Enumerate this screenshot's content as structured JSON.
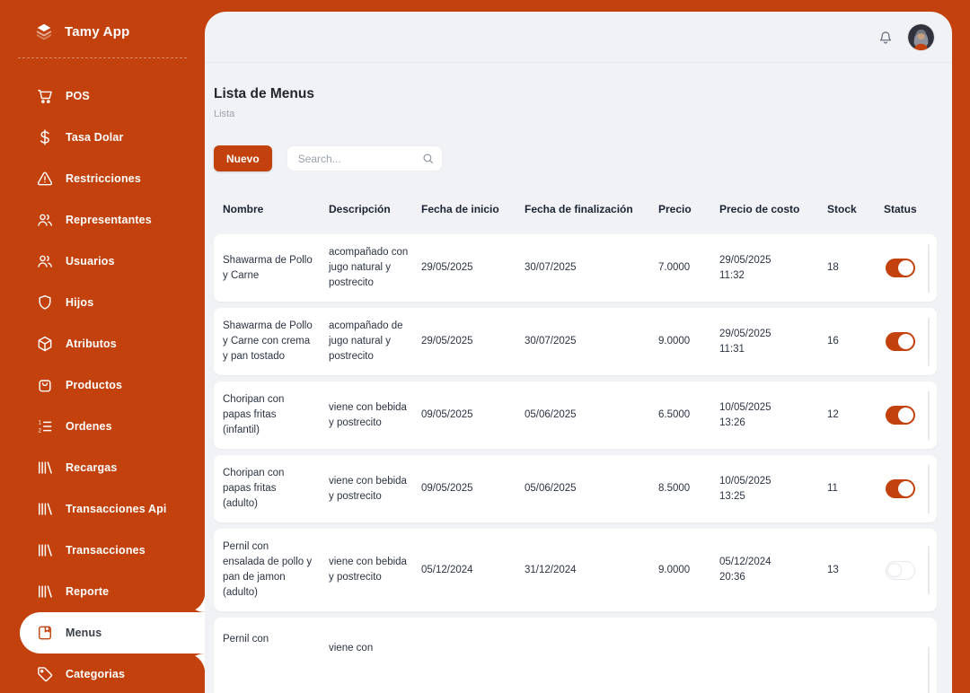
{
  "app": {
    "name": "Tamy App",
    "logo_icon": "layers-icon"
  },
  "sidebar": {
    "items": [
      {
        "label": "POS",
        "icon": "cart",
        "active": false
      },
      {
        "label": "Tasa Dolar",
        "icon": "dollar",
        "active": false
      },
      {
        "label": "Restricciones",
        "icon": "warning",
        "active": false
      },
      {
        "label": "Representantes",
        "icon": "users",
        "active": false
      },
      {
        "label": "Usuarios",
        "icon": "users",
        "active": false
      },
      {
        "label": "Hijos",
        "icon": "shield",
        "active": false
      },
      {
        "label": "Atributos",
        "icon": "cube",
        "active": false
      },
      {
        "label": "Productos",
        "icon": "bag",
        "active": false
      },
      {
        "label": "Ordenes",
        "icon": "list-numbered",
        "active": false
      },
      {
        "label": "Recargas",
        "icon": "bars",
        "active": false
      },
      {
        "label": "Transacciones Api",
        "icon": "bars",
        "active": false
      },
      {
        "label": "Transacciones",
        "icon": "bars",
        "active": false
      },
      {
        "label": "Reporte",
        "icon": "bars",
        "active": false
      },
      {
        "label": "Menus",
        "icon": "book",
        "active": true
      },
      {
        "label": "Categorias",
        "icon": "tag",
        "active": false
      }
    ]
  },
  "topbar": {
    "bell_icon": "bell-icon",
    "avatar_name": "user-avatar"
  },
  "page": {
    "title": "Lista de Menus",
    "subtitle": "Lista"
  },
  "toolbar": {
    "new_button": "Nuevo",
    "search_placeholder": "Search..."
  },
  "table": {
    "columns": [
      "Nombre",
      "Descripción",
      "Fecha de inicio",
      "Fecha de finalización",
      "Precio",
      "Precio de costo",
      "Stock",
      "Status"
    ],
    "rows": [
      {
        "nombre": "Shawarma de Pollo y Carne",
        "descripcion": "acompañado con jugo natural y postrecito",
        "fecha_inicio": "29/05/2025",
        "fecha_fin": "30/07/2025",
        "precio": "7.0000",
        "costo_fecha": "29/05/2025",
        "costo_hora": "11:32",
        "stock": "18",
        "status_on": true,
        "partial": false
      },
      {
        "nombre": "Shawarma de Pollo y Carne con crema y pan tostado",
        "descripcion": "acompañado de jugo natural y postrecito",
        "fecha_inicio": "29/05/2025",
        "fecha_fin": "30/07/2025",
        "precio": "9.0000",
        "costo_fecha": "29/05/2025",
        "costo_hora": "11:31",
        "stock": "16",
        "status_on": true,
        "partial": false
      },
      {
        "nombre": "Choripan con papas fritas (infantil)",
        "descripcion": "viene con bebida y postrecito",
        "fecha_inicio": "09/05/2025",
        "fecha_fin": "05/06/2025",
        "precio": "6.5000",
        "costo_fecha": "10/05/2025",
        "costo_hora": "13:26",
        "stock": "12",
        "status_on": true,
        "partial": false
      },
      {
        "nombre": "Choripan con papas fritas (adulto)",
        "descripcion": "viene con bebida y postrecito",
        "fecha_inicio": "09/05/2025",
        "fecha_fin": "05/06/2025",
        "precio": "8.5000",
        "costo_fecha": "10/05/2025",
        "costo_hora": "13:25",
        "stock": "11",
        "status_on": true,
        "partial": false
      },
      {
        "nombre": "Pernil con ensalada de pollo y pan de jamon (adulto)",
        "descripcion": "viene con bebida y postrecito",
        "fecha_inicio": "05/12/2024",
        "fecha_fin": "31/12/2024",
        "precio": "9.0000",
        "costo_fecha": "05/12/2024",
        "costo_hora": "20:36",
        "stock": "13",
        "status_on": false,
        "partial": false
      },
      {
        "nombre": "Pernil con",
        "descripcion": "viene con",
        "fecha_inicio": "",
        "fecha_fin": "",
        "precio": "",
        "costo_fecha": "",
        "costo_hora": "",
        "stock": "",
        "status_on": null,
        "partial": true
      }
    ]
  },
  "colors": {
    "accent": "#C2410C",
    "card_bg": "#F0F2F5",
    "row_bg": "#FFFFFF"
  }
}
